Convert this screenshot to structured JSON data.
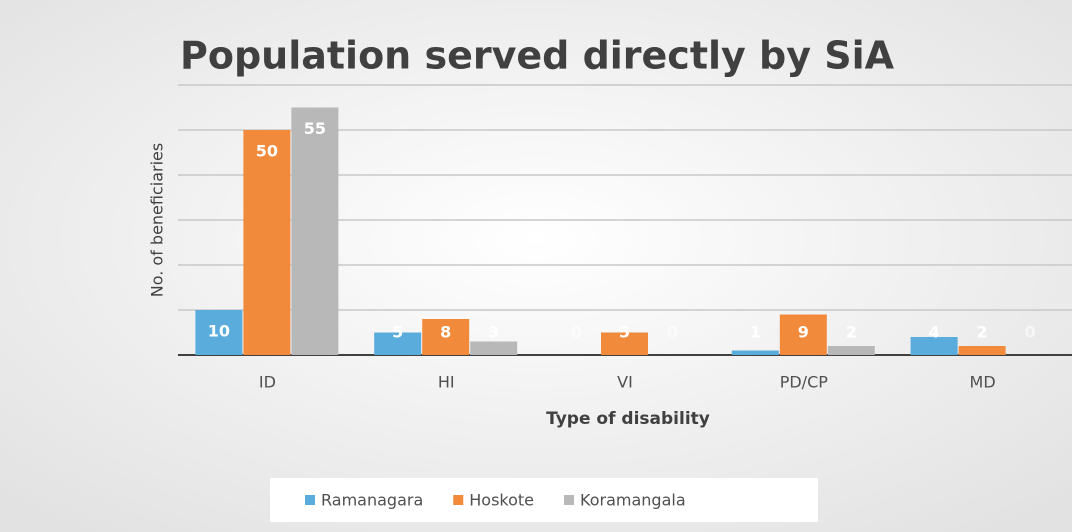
{
  "chart_data": {
    "type": "bar",
    "title": "Population served directly by SiA",
    "y_label": "No. of beneficiaries",
    "x_label": "Type of disability",
    "categories": [
      "ID",
      "HI",
      "VI",
      "PD/CP",
      "MD"
    ],
    "series": [
      {
        "name": "Ramanagara",
        "color": "#5aacdc",
        "values": [
          10,
          5,
          0,
          1,
          4
        ]
      },
      {
        "name": "Hoskote",
        "color": "#f28a3c",
        "values": [
          50,
          8,
          5,
          9,
          2
        ]
      },
      {
        "name": "Koramangala",
        "color": "#b8b8b8",
        "values": [
          55,
          3,
          0,
          2,
          0
        ]
      }
    ],
    "ylim": [
      0,
      60
    ],
    "yticks": [
      0,
      10,
      20,
      30,
      40,
      50,
      60
    ],
    "show_ytick_labels": false,
    "grid": true,
    "data_labels": true,
    "legend": "bottom"
  }
}
